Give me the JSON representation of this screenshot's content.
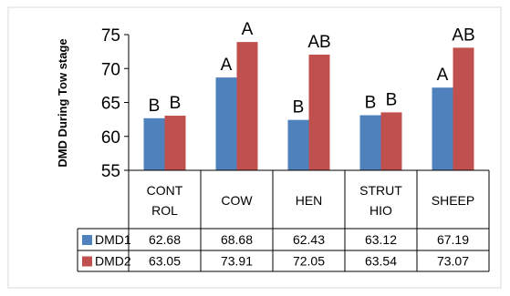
{
  "chart_data": {
    "type": "bar",
    "ylabel": "DMD During Tow stage",
    "ylim": [
      55,
      75
    ],
    "yticks": [
      55,
      60,
      65,
      70,
      75
    ],
    "categories": [
      [
        "CONT",
        "ROL"
      ],
      [
        "COW"
      ],
      [
        "HEN"
      ],
      [
        "STRUT",
        "HIO"
      ],
      [
        "SHEEP"
      ]
    ],
    "series": [
      {
        "name": "DMD1",
        "color": "#4f81bd",
        "values": [
          62.68,
          68.68,
          62.43,
          63.12,
          67.19
        ],
        "labels": [
          "62.68",
          "68.68",
          "62.43",
          "63.12",
          "67.19"
        ]
      },
      {
        "name": "DMD2",
        "color": "#c0504d",
        "values": [
          63.05,
          73.91,
          72.05,
          63.54,
          73.07
        ],
        "labels": [
          "63.05",
          "73.91",
          "72.05",
          "63.54",
          "73.07"
        ]
      }
    ],
    "significance": [
      [
        "B",
        "B"
      ],
      [
        "A",
        "A"
      ],
      [
        "B",
        "AB"
      ],
      [
        "B",
        "B"
      ],
      [
        "A",
        "AB"
      ]
    ],
    "data_table": true
  }
}
